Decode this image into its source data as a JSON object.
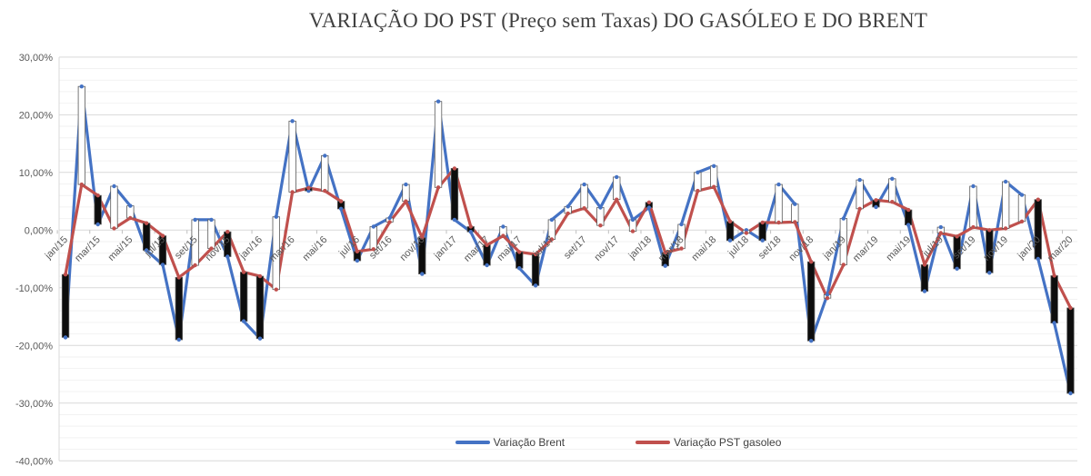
{
  "title": "VARIAÇÃO DO PST (Preço sem Taxas) DO GASÓLEO E DO BRENT",
  "chart_data": {
    "type": "line",
    "title": "VARIAÇÃO DO PST (Preço sem Taxas) DO GASÓLEO E DO BRENT",
    "categories": [
      "jan/15",
      "fev/15",
      "mar/15",
      "abr/15",
      "mai/15",
      "jun/15",
      "jul/15",
      "ago/15",
      "set/15",
      "out/15",
      "nov/15",
      "dez/15",
      "jan/16",
      "fev/16",
      "mar/16",
      "abr/16",
      "mai/16",
      "jun/16",
      "jul/16",
      "ago/16",
      "set/16",
      "out/16",
      "nov/16",
      "dez/16",
      "jan/17",
      "fev/17",
      "mar/17",
      "abr/17",
      "mai/17",
      "jun/17",
      "jul/17",
      "ago/17",
      "set/17",
      "out/17",
      "nov/17",
      "dez/17",
      "jan/18",
      "fev/18",
      "mar/18",
      "abr/18",
      "mai/18",
      "jun/18",
      "jul/18",
      "ago/18",
      "set/18",
      "out/18",
      "nov/18",
      "dez/18",
      "jan/19",
      "fev/19",
      "mar/19",
      "abr/19",
      "mai/19",
      "jun/19",
      "jul/19",
      "ago/19",
      "set/19",
      "out/19",
      "nov/19",
      "dez/19",
      "jan/20",
      "fev/20",
      "mar/20"
    ],
    "x_tick_labels": [
      "jan/15",
      "mar/15",
      "mai/15",
      "jul/15",
      "set/15",
      "nov/15",
      "jan/16",
      "mar/16",
      "mai/16",
      "jul/16",
      "set/16",
      "nov/16",
      "jan/17",
      "mar/17",
      "mai/17",
      "jul/17",
      "set/17",
      "nov/17",
      "jan/18",
      "mar/18",
      "mai/18",
      "jul/18",
      "set/18",
      "nov/18",
      "jan/19",
      "mar/19",
      "mai/19",
      "jul/19",
      "set/19",
      "nov/19",
      "jan/20",
      "mar/20"
    ],
    "x_label_every": 2,
    "series": [
      {
        "name": "Variação Brent",
        "color": "#4472C4",
        "values": [
          -18.6,
          24.9,
          1.0,
          7.6,
          4.2,
          -3.5,
          -6.0,
          -19.0,
          1.8,
          1.8,
          -4.6,
          -15.8,
          -18.8,
          2.3,
          18.9,
          6.8,
          12.9,
          3.7,
          -5.3,
          0.6,
          2.1,
          7.9,
          -7.6,
          22.3,
          1.8,
          -0.3,
          -6.1,
          0.6,
          -6.6,
          -9.6,
          1.8,
          4.1,
          7.9,
          3.9,
          9.2,
          1.8,
          3.9,
          -6.2,
          1.0,
          10.0,
          11.1,
          -1.8,
          0.0,
          -1.8,
          7.9,
          4.5,
          -19.2,
          -11.2,
          2.0,
          8.7,
          4.0,
          8.9,
          0.9,
          -10.6,
          0.5,
          -6.7,
          7.6,
          -7.4,
          8.4,
          6.1,
          -5.0,
          -16.1,
          -28.3
        ]
      },
      {
        "name": "Variação PST gasoleo",
        "color": "#C0504D",
        "values": [
          -7.7,
          7.9,
          6.0,
          0.3,
          2.1,
          1.2,
          -1.0,
          -8.2,
          -6.1,
          -3.2,
          -0.3,
          -7.3,
          -8.0,
          -10.3,
          6.6,
          7.3,
          6.8,
          5.0,
          -3.7,
          -3.3,
          1.4,
          5.0,
          -1.3,
          7.4,
          10.7,
          0.6,
          -2.6,
          -1.0,
          -3.8,
          -4.2,
          -1.6,
          2.9,
          3.8,
          0.8,
          5.3,
          -0.2,
          4.8,
          -3.9,
          -3.2,
          6.8,
          7.5,
          1.5,
          -0.5,
          1.3,
          1.3,
          1.4,
          -5.5,
          -11.8,
          -6.0,
          3.7,
          5.2,
          4.9,
          3.5,
          -6.0,
          -0.5,
          -1.1,
          0.5,
          0.0,
          0.3,
          1.5,
          5.3,
          -7.9,
          -13.5
        ]
      }
    ],
    "up_down_bars": {
      "up_fill": "#FFFFFF",
      "down_fill": "#0D0D0D",
      "outline": "#595959"
    },
    "y_axis": {
      "min": -40,
      "max": 30,
      "major_unit": 10,
      "minor_unit": 2,
      "tick_labels": [
        "30,00%",
        "20,00%",
        "10,00%",
        "0,00%",
        "-10,00%",
        "-20,00%",
        "-30,00%",
        "-40,00%"
      ]
    },
    "grid": {
      "major_color": "#D9D9D9",
      "minor_color": "#F2F2F2",
      "tick_color": "#BFBFBF"
    },
    "label_color": "#595959",
    "legend": {
      "position": "bottom"
    },
    "ylim": [
      -40,
      30
    ]
  }
}
